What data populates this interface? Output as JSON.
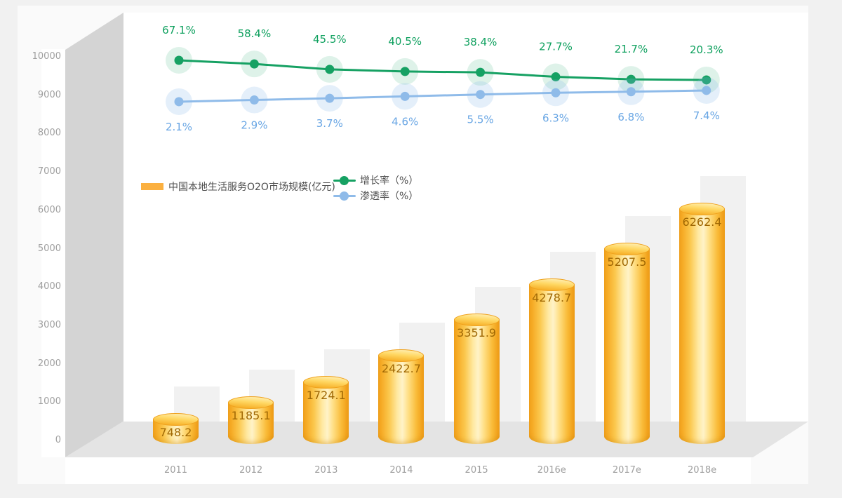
{
  "chart_data": {
    "type": "bar",
    "categories": [
      "2011",
      "2012",
      "2013",
      "2014",
      "2015",
      "2016e",
      "2017e",
      "2018e"
    ],
    "series": [
      {
        "name": "中国本地生活服务O2O市场规模(亿元)",
        "type": "bar",
        "values": [
          748.2,
          1185.1,
          1724.1,
          2422.7,
          3351.9,
          4278.7,
          5207.5,
          6262.4
        ],
        "color": "#fbb040"
      },
      {
        "name": "增长率（%）",
        "type": "line",
        "values": [
          67.1,
          58.4,
          45.5,
          40.5,
          38.4,
          27.7,
          21.7,
          20.3
        ],
        "unit": "%",
        "color": "#16a163",
        "label_color": "#0ea05e"
      },
      {
        "name": "渗透率（%）",
        "type": "line",
        "values": [
          2.1,
          2.9,
          3.7,
          4.6,
          5.5,
          6.3,
          6.8,
          7.4
        ],
        "unit": "%",
        "color": "#8fbbe9",
        "label_color": "#69a6e4"
      }
    ],
    "y_axis": {
      "ticks": [
        0,
        1000,
        2000,
        3000,
        4000,
        5000,
        6000,
        7000,
        8000,
        9000,
        10000
      ],
      "range": [
        0,
        10000
      ]
    },
    "x_axis": {
      "labels": [
        "2011",
        "2012",
        "2013",
        "2014",
        "2015",
        "2016e",
        "2017e",
        "2018e"
      ]
    },
    "grid": false,
    "legend_position": "inside-upper-middle"
  },
  "colors": {
    "wall": "#d4d4d4",
    "floor": "#e4e4e4",
    "panel": "#ffffff",
    "page": "#f1f1f1",
    "bar_value_text": "#a06804",
    "axis_text": "#9f9f9f",
    "legend_text": "#4f4f4f"
  }
}
